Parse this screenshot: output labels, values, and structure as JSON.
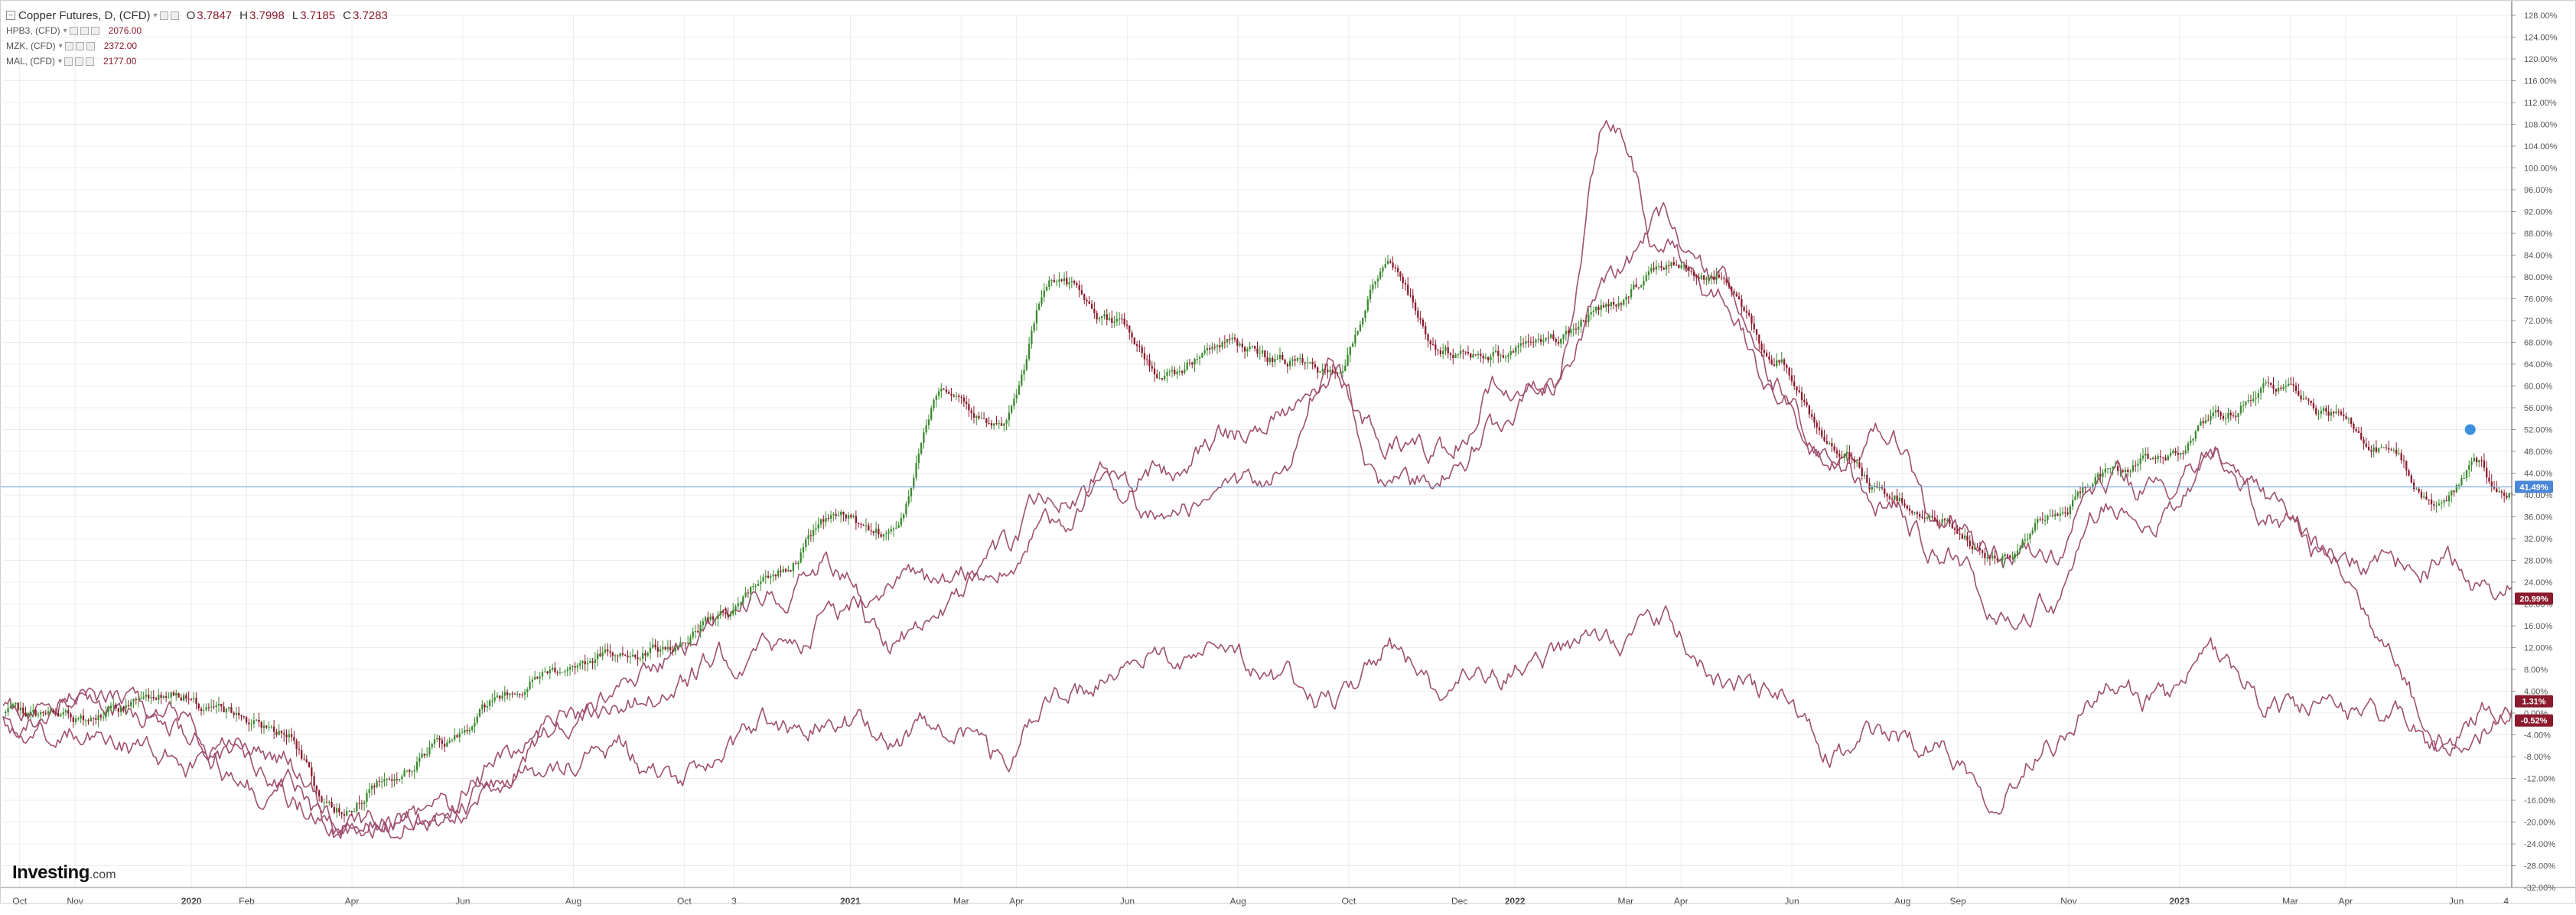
{
  "legend": {
    "title": "Copper Futures, D, (CFD)",
    "ohlc": {
      "o_label": "O",
      "o": "3.7847",
      "h_label": "H",
      "h": "3.7998",
      "l_label": "L",
      "l": "3.7185",
      "c_label": "C",
      "c": "3.7283"
    },
    "symbols": [
      {
        "name": "HPB3, (CFD)",
        "value": "2076.00"
      },
      {
        "name": "MZK, (CFD)",
        "value": "2372.00"
      },
      {
        "name": "MAL, (CFD)",
        "value": "2177.00"
      }
    ]
  },
  "logo": {
    "name": "Investing",
    "suffix": ".com"
  },
  "colors": {
    "up": "#3a8a2e",
    "down": "#8b1a2d",
    "compare": "#a05070",
    "crosshair": "#7da7d9",
    "grid": "#ececec",
    "axis": "#555555"
  },
  "chart_data": {
    "type": "line",
    "title": "Copper Futures, D, (CFD)",
    "xlabel": "",
    "ylabel": "",
    "grid": true,
    "legend_position": "top-left",
    "ylim": [
      -32,
      128
    ],
    "y_ticks": [
      "128.00%",
      "124.00%",
      "120.00%",
      "116.00%",
      "112.00%",
      "108.00%",
      "104.00%",
      "100.00%",
      "96.00%",
      "92.00%",
      "88.00%",
      "84.00%",
      "80.00%",
      "76.00%",
      "72.00%",
      "68.00%",
      "64.00%",
      "60.00%",
      "56.00%",
      "52.00%",
      "48.00%",
      "44.00%",
      "40.00%",
      "36.00%",
      "32.00%",
      "28.00%",
      "24.00%",
      "20.00%",
      "16.00%",
      "12.00%",
      "8.00%",
      "4.00%",
      "0.00%",
      "-4.00%",
      "-8.00%",
      "-12.00%",
      "-16.00%",
      "-20.00%",
      "-24.00%",
      "-28.00%",
      "-32.00%"
    ],
    "x_ticks": [
      {
        "label": "Oct",
        "t": 0.3
      },
      {
        "label": "Nov",
        "t": 1.3
      },
      {
        "label": "2020",
        "t": 3.4
      },
      {
        "label": "Feb",
        "t": 4.4
      },
      {
        "label": "Apr",
        "t": 6.3
      },
      {
        "label": "Jun",
        "t": 8.3
      },
      {
        "label": "Aug",
        "t": 10.3
      },
      {
        "label": "Oct",
        "t": 12.3
      },
      {
        "label": "3",
        "t": 13.2
      },
      {
        "label": "2021",
        "t": 15.3
      },
      {
        "label": "Mar",
        "t": 17.3
      },
      {
        "label": "Apr",
        "t": 18.3
      },
      {
        "label": "Jun",
        "t": 20.3
      },
      {
        "label": "Aug",
        "t": 22.3
      },
      {
        "label": "Oct",
        "t": 24.3
      },
      {
        "label": "Dec",
        "t": 26.3
      },
      {
        "label": "2022",
        "t": 27.3
      },
      {
        "label": "Mar",
        "t": 29.3
      },
      {
        "label": "Apr",
        "t": 30.3
      },
      {
        "label": "Jun",
        "t": 32.3
      },
      {
        "label": "Aug",
        "t": 34.3
      },
      {
        "label": "Sep",
        "t": 35.3
      },
      {
        "label": "Nov",
        "t": 37.3
      },
      {
        "label": "2023",
        "t": 39.3
      },
      {
        "label": "Mar",
        "t": 41.3
      },
      {
        "label": "Apr",
        "t": 42.3
      },
      {
        "label": "Jun",
        "t": 44.3
      },
      {
        "label": "4",
        "t": 45.2
      }
    ],
    "xlim": [
      0,
      45.3
    ],
    "current_line": {
      "value": 41.49,
      "label": "41.49%"
    },
    "price_labels": [
      {
        "label": "41.49%",
        "value": 41.49,
        "color": "#4a86d8"
      },
      {
        "label": "20.99%",
        "value": 20.99,
        "color": "#8b1a2d"
      },
      {
        "label": "1.31%",
        "value": 1.31,
        "color": "#8b1a2d"
      },
      {
        "label": "-0.52%",
        "value": -0.52,
        "color": "#8b1a2d"
      }
    ],
    "series": [
      {
        "type": "candlestick",
        "keypoints": [
          [
            0,
            0
          ],
          [
            1.5,
            -1
          ],
          [
            3,
            4
          ],
          [
            4,
            0
          ],
          [
            5,
            -3
          ],
          [
            6,
            -18
          ],
          [
            7,
            -12
          ],
          [
            8,
            -5
          ],
          [
            9,
            3
          ],
          [
            10,
            8
          ],
          [
            11,
            11
          ],
          [
            12,
            12
          ],
          [
            13,
            18
          ],
          [
            14,
            26
          ],
          [
            15,
            36
          ],
          [
            16,
            33
          ],
          [
            17,
            60
          ],
          [
            18,
            52
          ],
          [
            19,
            80
          ],
          [
            20,
            72
          ],
          [
            21,
            62
          ],
          [
            22,
            68
          ],
          [
            23,
            65
          ],
          [
            24,
            62
          ],
          [
            25,
            82
          ],
          [
            26,
            66
          ],
          [
            27,
            66
          ],
          [
            28,
            69
          ],
          [
            29,
            75
          ],
          [
            30,
            82
          ],
          [
            31,
            80
          ],
          [
            32,
            65
          ],
          [
            33,
            49
          ],
          [
            34,
            40
          ],
          [
            35,
            35
          ],
          [
            36,
            28
          ],
          [
            37,
            36
          ],
          [
            38,
            44
          ],
          [
            39,
            47
          ],
          [
            40,
            54
          ],
          [
            41,
            60
          ],
          [
            42,
            55
          ],
          [
            43,
            48
          ],
          [
            44,
            38
          ],
          [
            44.7,
            46
          ],
          [
            45,
            40
          ]
        ]
      },
      {
        "type": "line",
        "keypoints": [
          [
            0,
            -2
          ],
          [
            1.5,
            2
          ],
          [
            3,
            0
          ],
          [
            4,
            -6
          ],
          [
            5,
            -8
          ],
          [
            6,
            -20
          ],
          [
            7,
            -20
          ],
          [
            8,
            -16
          ],
          [
            9,
            -8
          ],
          [
            10,
            -2
          ],
          [
            11,
            2
          ],
          [
            12,
            4
          ],
          [
            13,
            10
          ],
          [
            14,
            12
          ],
          [
            15,
            18
          ],
          [
            16,
            25
          ],
          [
            17,
            22
          ],
          [
            18,
            30
          ],
          [
            19,
            40
          ],
          [
            20,
            40
          ],
          [
            21,
            45
          ],
          [
            22,
            50
          ],
          [
            23,
            55
          ],
          [
            24,
            62
          ],
          [
            25,
            50
          ],
          [
            26,
            48
          ],
          [
            27,
            60
          ],
          [
            28,
            60
          ],
          [
            29,
            80
          ],
          [
            30,
            90
          ],
          [
            31,
            78
          ],
          [
            32,
            60
          ],
          [
            33,
            45
          ],
          [
            34,
            52
          ],
          [
            35,
            35
          ],
          [
            36,
            28
          ],
          [
            37,
            30
          ],
          [
            38,
            42
          ],
          [
            39,
            40
          ],
          [
            40,
            47
          ],
          [
            41,
            36
          ],
          [
            42,
            30
          ],
          [
            43,
            27
          ],
          [
            44,
            27
          ],
          [
            45,
            22
          ]
        ]
      },
      {
        "type": "line",
        "keypoints": [
          [
            0,
            0
          ],
          [
            1.5,
            4
          ],
          [
            3,
            -2
          ],
          [
            4,
            -8
          ],
          [
            5,
            -12
          ],
          [
            6,
            -22
          ],
          [
            7,
            -20
          ],
          [
            8,
            -18
          ],
          [
            9,
            -12
          ],
          [
            10,
            -2
          ],
          [
            11,
            2
          ],
          [
            12,
            10
          ],
          [
            13,
            18
          ],
          [
            14,
            22
          ],
          [
            15,
            28
          ],
          [
            16,
            12
          ],
          [
            17,
            20
          ],
          [
            18,
            26
          ],
          [
            19,
            34
          ],
          [
            20,
            45
          ],
          [
            21,
            35
          ],
          [
            22,
            40
          ],
          [
            23,
            44
          ],
          [
            24,
            64
          ],
          [
            25,
            40
          ],
          [
            26,
            44
          ],
          [
            27,
            52
          ],
          [
            28,
            62
          ],
          [
            29,
            110
          ],
          [
            30,
            84
          ],
          [
            31,
            76
          ],
          [
            32,
            60
          ],
          [
            33,
            44
          ],
          [
            34,
            38
          ],
          [
            35,
            30
          ],
          [
            36,
            20
          ],
          [
            37,
            20
          ],
          [
            38,
            38
          ],
          [
            39,
            36
          ],
          [
            40,
            48
          ],
          [
            41,
            38
          ],
          [
            42,
            28
          ],
          [
            43,
            15
          ],
          [
            44,
            -6
          ],
          [
            45,
            -2
          ]
        ]
      },
      {
        "type": "line",
        "keypoints": [
          [
            0,
            -2
          ],
          [
            1.5,
            -4
          ],
          [
            3,
            -8
          ],
          [
            4,
            -12
          ],
          [
            5,
            -15
          ],
          [
            6,
            -22
          ],
          [
            7,
            -18
          ],
          [
            8,
            -20
          ],
          [
            9,
            -12
          ],
          [
            10,
            -10
          ],
          [
            11,
            -6
          ],
          [
            12,
            -12
          ],
          [
            13,
            -8
          ],
          [
            14,
            -2
          ],
          [
            15,
            0
          ],
          [
            16,
            -4
          ],
          [
            17,
            -2
          ],
          [
            18,
            -8
          ],
          [
            19,
            2
          ],
          [
            20,
            6
          ],
          [
            21,
            10
          ],
          [
            22,
            14
          ],
          [
            23,
            6
          ],
          [
            24,
            2
          ],
          [
            25,
            12
          ],
          [
            26,
            4
          ],
          [
            27,
            6
          ],
          [
            28,
            10
          ],
          [
            29,
            14
          ],
          [
            30,
            16
          ],
          [
            31,
            6
          ],
          [
            32,
            4
          ],
          [
            33,
            -8
          ],
          [
            34,
            -4
          ],
          [
            35,
            -6
          ],
          [
            36,
            -14
          ],
          [
            37,
            -4
          ],
          [
            38,
            4
          ],
          [
            39,
            2
          ],
          [
            40,
            10
          ],
          [
            41,
            2
          ],
          [
            42,
            0
          ],
          [
            43,
            0
          ],
          [
            44,
            -6
          ],
          [
            45,
            2
          ]
        ]
      }
    ]
  }
}
